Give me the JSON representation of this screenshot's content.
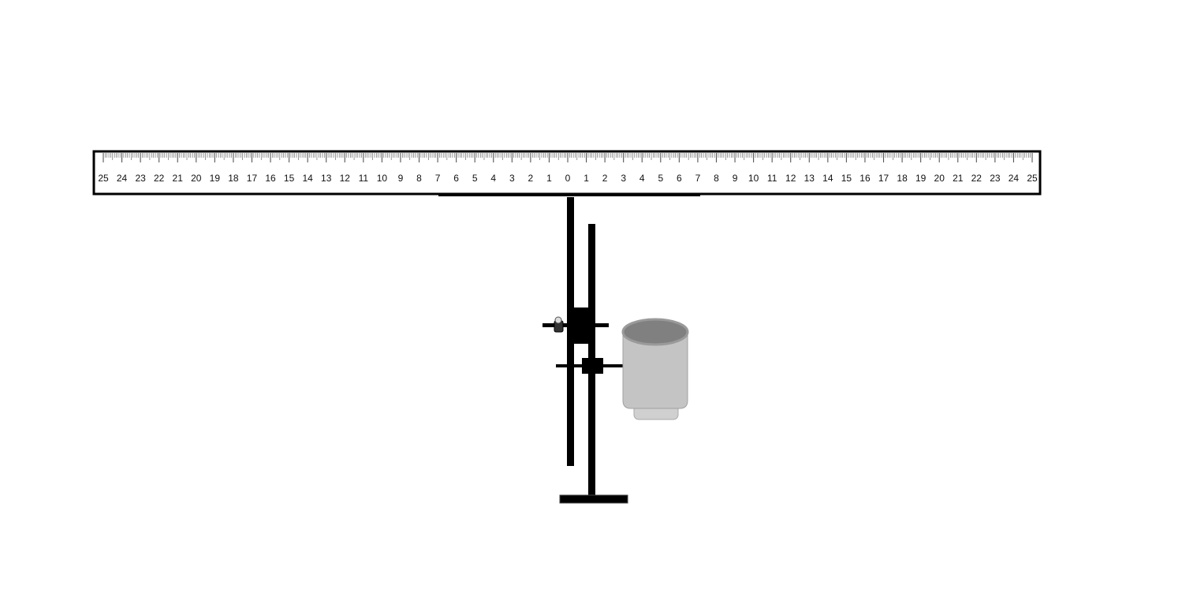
{
  "ruler": {
    "left_labels": [
      "25",
      "24",
      "23",
      "22",
      "21",
      "20",
      "19",
      "18",
      "17",
      "16",
      "15",
      "14",
      "13",
      "12",
      "11",
      "10",
      "9",
      "8",
      "7",
      "6",
      "5",
      "4",
      "3",
      "2",
      "1"
    ],
    "center_label": "0",
    "right_labels": [
      "1",
      "2",
      "3",
      "4",
      "5",
      "6",
      "7",
      "8",
      "9",
      "10",
      "11",
      "12",
      "13",
      "14",
      "15",
      "16",
      "17",
      "18",
      "19",
      "20",
      "21",
      "22",
      "23",
      "24",
      "25"
    ],
    "range": [
      -25,
      25
    ],
    "minor_divisions_per_unit": 10,
    "colors": {
      "frame": "#000000",
      "ticks": "#555555",
      "labels": "#111111"
    }
  },
  "apparatus": {
    "parts": [
      "ruler-bar",
      "suspension-rod",
      "stand-pole",
      "stand-base",
      "clamp",
      "clamp-screw",
      "crossbar",
      "cup"
    ],
    "colors": {
      "metal": "#000000",
      "cup_body": "#c4c4c4",
      "cup_rim": "#b8b8b8",
      "cup_interior": "#808080",
      "cup_base": "#d0d0d0"
    }
  }
}
